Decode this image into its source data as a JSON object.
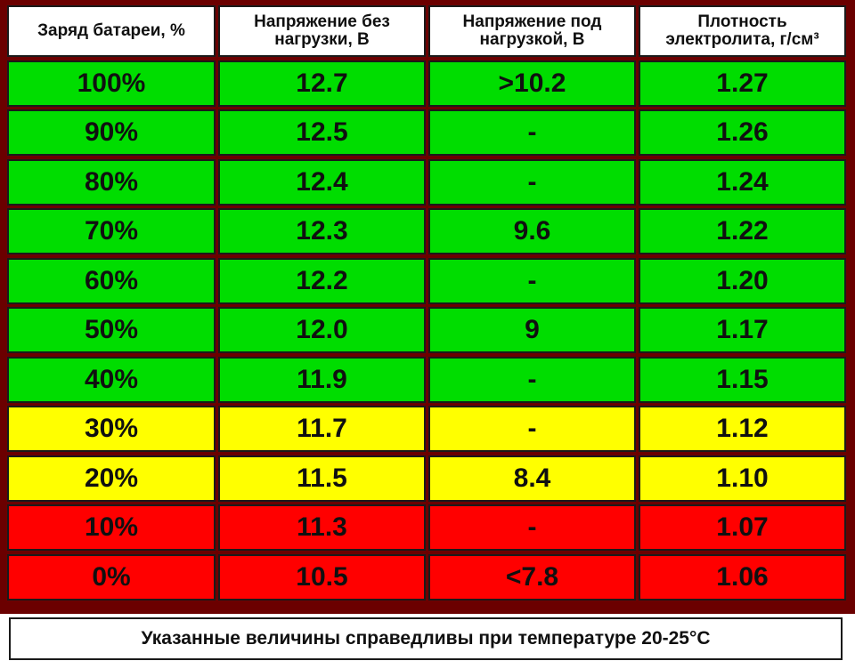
{
  "table": {
    "headers": [
      {
        "line1": "Заряд батареи, %",
        "line2": ""
      },
      {
        "line1": "Напряжение без",
        "line2": "нагрузки, В"
      },
      {
        "line1": "Напряжение под",
        "line2": "нагрузкой, В"
      },
      {
        "line1": "Плотность",
        "line2": "электролита, г/см³"
      }
    ],
    "rows": [
      {
        "charge": "100%",
        "open_voltage": "12.7",
        "load_voltage": ">10.2",
        "density": "1.27",
        "status": "green"
      },
      {
        "charge": "90%",
        "open_voltage": "12.5",
        "load_voltage": "-",
        "density": "1.26",
        "status": "green"
      },
      {
        "charge": "80%",
        "open_voltage": "12.4",
        "load_voltage": "-",
        "density": "1.24",
        "status": "green"
      },
      {
        "charge": "70%",
        "open_voltage": "12.3",
        "load_voltage": "9.6",
        "density": "1.22",
        "status": "green"
      },
      {
        "charge": "60%",
        "open_voltage": "12.2",
        "load_voltage": "-",
        "density": "1.20",
        "status": "green"
      },
      {
        "charge": "50%",
        "open_voltage": "12.0",
        "load_voltage": "9",
        "density": "1.17",
        "status": "green"
      },
      {
        "charge": "40%",
        "open_voltage": "11.9",
        "load_voltage": "-",
        "density": "1.15",
        "status": "green"
      },
      {
        "charge": "30%",
        "open_voltage": "11.7",
        "load_voltage": "-",
        "density": "1.12",
        "status": "yellow"
      },
      {
        "charge": "20%",
        "open_voltage": "11.5",
        "load_voltage": "8.4",
        "density": "1.10",
        "status": "yellow"
      },
      {
        "charge": "10%",
        "open_voltage": "11.3",
        "load_voltage": "-",
        "density": "1.07",
        "status": "red"
      },
      {
        "charge": "0%",
        "open_voltage": "10.5",
        "load_voltage": "<7.8",
        "density": "1.06",
        "status": "red"
      }
    ]
  },
  "colors": {
    "green": "#00dd00",
    "yellow": "#ffff00",
    "red": "#ff0000",
    "frame": "#6b0000"
  },
  "footer": {
    "note": "Указанные величины справедливы при температуре 20-25°C"
  }
}
